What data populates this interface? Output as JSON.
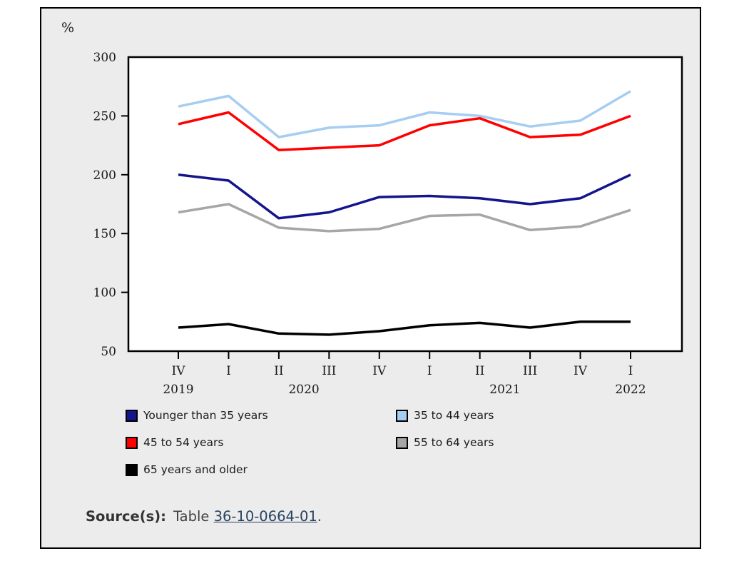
{
  "panel": {
    "percent_label": "%"
  },
  "chart_data": {
    "type": "line",
    "title": "",
    "xlabel": "",
    "ylabel": "%",
    "ylim": [
      50,
      300
    ],
    "yticks": [
      300,
      250,
      200,
      150,
      100,
      50
    ],
    "grid": false,
    "legend_position": "below-chart, two columns",
    "categories": [
      "IV",
      "I",
      "II",
      "III",
      "IV",
      "I",
      "II",
      "III",
      "IV",
      "I"
    ],
    "year_labels": [
      {
        "text": "2019",
        "pos": 0
      },
      {
        "text": "2020",
        "pos": 2.5
      },
      {
        "text": "2021",
        "pos": 6.5
      },
      {
        "text": "2022",
        "pos": 9
      }
    ],
    "series": [
      {
        "name": "Younger than 35 years",
        "color": "#14148C",
        "values": [
          200,
          195,
          163,
          168,
          181,
          182,
          180,
          175,
          180,
          200
        ]
      },
      {
        "name": "35 to 44 years",
        "color": "#A6CDF2",
        "values": [
          258,
          267,
          232,
          240,
          242,
          253,
          250,
          241,
          246,
          271
        ]
      },
      {
        "name": "45 to 54 years",
        "color": "#FF0000",
        "values": [
          243,
          253,
          221,
          223,
          225,
          242,
          248,
          232,
          234,
          250
        ]
      },
      {
        "name": "55 to 64 years",
        "color": "#A6A6A6",
        "values": [
          168,
          175,
          155,
          152,
          154,
          165,
          166,
          153,
          156,
          170
        ]
      },
      {
        "name": "65 years and older",
        "color": "#000000",
        "values": [
          70,
          73,
          65,
          64,
          67,
          72,
          74,
          70,
          75,
          75
        ]
      }
    ]
  },
  "source": {
    "label": "Source(s):",
    "text_before_link": "Table ",
    "link": "36-10-0664-01",
    "suffix": "."
  }
}
